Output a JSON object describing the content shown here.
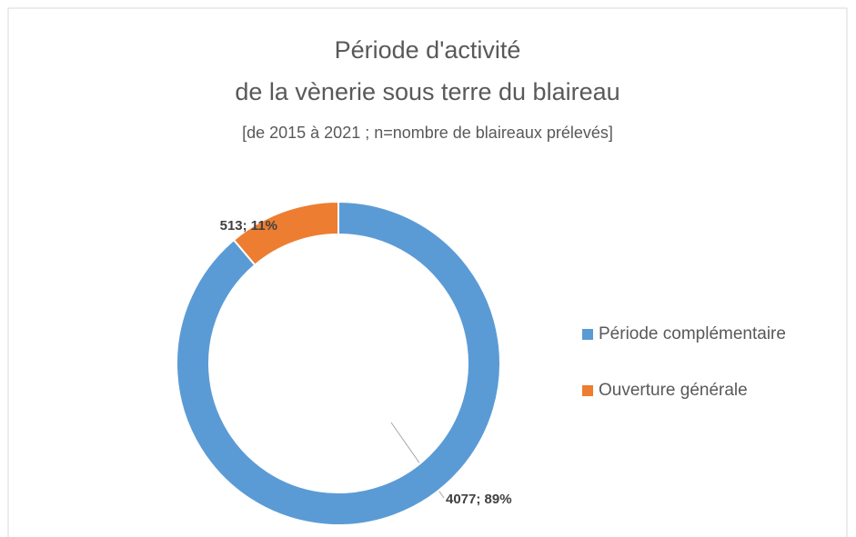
{
  "chart_data": {
    "type": "donut",
    "title": [
      "Période d'activité",
      "de la vènerie sous terre du blaireau"
    ],
    "subtitle": "[de 2015 à 2021 ; n=nombre de blaireaux prélevés]",
    "categories": [
      "Période complémentaire",
      "Ouverture générale"
    ],
    "values": [
      4077,
      513
    ],
    "value_labels": [
      "4077; 89%",
      "513; 11%"
    ],
    "colors": [
      "#5b9bd5",
      "#ed7d31"
    ],
    "legend": "right"
  }
}
